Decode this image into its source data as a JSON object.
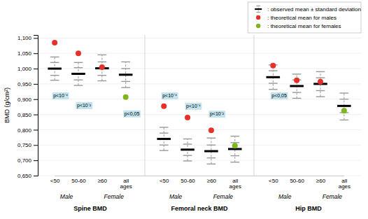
{
  "chart_data": {
    "type": "errorbar",
    "ylabel": "BMD (g/cm²)",
    "ylim": [
      0.65,
      1.11
    ],
    "yticks": [
      {
        "value": 0.65,
        "label": "0,650"
      },
      {
        "value": 0.7,
        "label": "0,700"
      },
      {
        "value": 0.75,
        "label": "0,750"
      },
      {
        "value": 0.8,
        "label": "0,800"
      },
      {
        "value": 0.85,
        "label": "0,850"
      },
      {
        "value": 0.9,
        "label": "0,900"
      },
      {
        "value": 0.95,
        "label": "0,950"
      },
      {
        "value": 1.0,
        "label": "1,000"
      },
      {
        "value": 1.05,
        "label": "1,050"
      },
      {
        "value": 1.1,
        "label": "1,100"
      }
    ],
    "grid": true,
    "legend": "upper right",
    "groups": [
      {
        "label": "Spine BMD",
        "male_label": "Male",
        "female_label": "Female",
        "categories": [
          "<50",
          "50-60",
          "≥60",
          "all\nages"
        ],
        "annotations": [
          {
            "text": "p<10⁻⁴",
            "category": "<50",
            "y": 0.912,
            "color": "#bde0ec"
          },
          {
            "text": "p<10⁻²",
            "category": "50-60",
            "y": 0.88,
            "color": "#bde0ec"
          },
          {
            "text": "p<0,05",
            "category": "all\nages",
            "y": 0.853,
            "color": "#bde0ec"
          }
        ]
      },
      {
        "label": "Femoral neck BMD",
        "male_label": "Male",
        "female_label": "Female",
        "categories": [
          "<50",
          "50-60",
          "≥60",
          "all\nages"
        ],
        "annotations": [
          {
            "text": "p<10⁻⁴",
            "category": "<50",
            "y": 0.912,
            "color": "#bde0ec"
          },
          {
            "text": "p<10⁻⁴",
            "category": "50-60",
            "y": 0.878,
            "color": "#bde0ec"
          },
          {
            "text": "p<10⁻²",
            "category": "≥60",
            "y": 0.852,
            "color": "#bde0ec"
          }
        ]
      },
      {
        "label": "Hip BMD",
        "male_label": "Male",
        "female_label": "Female",
        "categories": [
          "<50",
          "50-60",
          "≥60",
          "all\nages"
        ],
        "annotations": [
          {
            "text": "p<0,05",
            "category": "<50",
            "y": 0.912,
            "color": "#bde0ec"
          }
        ]
      }
    ],
    "series": [
      {
        "name": ": observed mean ± standard deviation",
        "color": "#999999",
        "values": [
          1.0,
          0.983,
          1.001,
          0.98,
          0.77,
          0.735,
          0.73,
          0.737,
          0.972,
          0.943,
          0.95,
          0.878
        ],
        "sd_ticks": [
          [
            0.962,
            0.978,
            1.02,
            1.038
          ],
          [
            0.945,
            0.963,
            1.003,
            1.02
          ],
          [
            0.96,
            0.978,
            1.022,
            1.045
          ],
          [
            0.938,
            0.958,
            1.0,
            1.022
          ],
          [
            0.732,
            0.75,
            0.789,
            0.808
          ],
          [
            0.698,
            0.716,
            0.753,
            0.77
          ],
          [
            0.688,
            0.708,
            0.75,
            0.773
          ],
          [
            0.694,
            0.715,
            0.758,
            0.779
          ],
          [
            0.932,
            0.952,
            0.993,
            1.012
          ],
          [
            0.903,
            0.922,
            0.963,
            0.982
          ],
          [
            0.908,
            0.928,
            0.97,
            0.99
          ],
          [
            0.832,
            0.856,
            0.9,
            0.92
          ]
        ]
      },
      {
        "name": ": theoretical mean for males",
        "color": "#e8302a",
        "type": "scatter",
        "marker": "circle",
        "values": [
          1.085,
          1.05,
          1.005,
          null,
          0.877,
          0.84,
          0.798,
          null,
          1.01,
          0.962,
          0.957,
          null
        ]
      },
      {
        "name": ": theoretical mean for females",
        "color": "#80b520",
        "type": "scatter",
        "marker": "circle",
        "values": [
          null,
          null,
          null,
          0.907,
          null,
          null,
          null,
          0.748,
          null,
          null,
          null,
          0.862
        ]
      }
    ]
  }
}
